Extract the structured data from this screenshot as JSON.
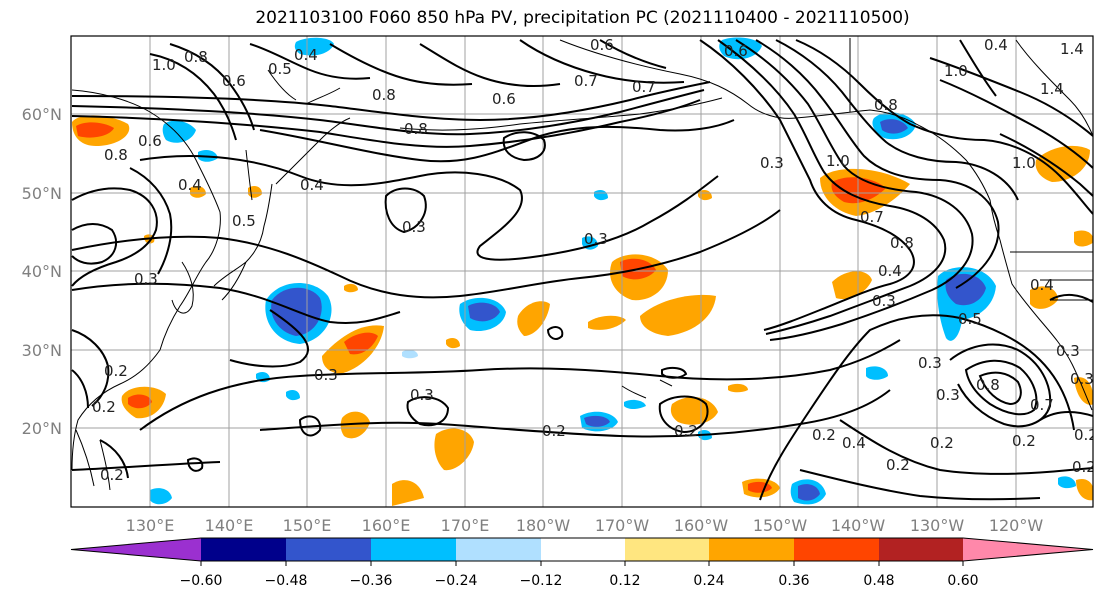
{
  "title": "2021103100 F060 850 hPa PV, precipitation PC (2021110400 - 2021110500)",
  "lat_labels": [
    "60°N",
    "50°N",
    "40°N",
    "30°N",
    "20°N"
  ],
  "lon_labels": [
    "130°E",
    "140°E",
    "150°E",
    "160°E",
    "170°E",
    "180°W",
    "170°W",
    "160°W",
    "150°W",
    "140°W",
    "130°W",
    "120°W"
  ],
  "contour_labels": [
    "0.8",
    "0.5",
    "0.4",
    "0.6",
    "0.6",
    "0.7",
    "0.7",
    "0.8",
    "0.8",
    "0.6",
    "1.0",
    "0.8",
    "0.6",
    "0.4",
    "0.4",
    "0.5",
    "0.3",
    "0.3",
    "0.3",
    "0.3",
    "0.3",
    "0.2",
    "0.2",
    "0.2",
    "0.2",
    "0.2",
    "0.3",
    "1.0",
    "0.7",
    "0.8",
    "0.4",
    "0.3",
    "0.3",
    "0.5",
    "0.3",
    "0.8",
    "0.2",
    "0.2",
    "0.4",
    "0.2",
    "0.2",
    "0.7",
    "1.4",
    "1.0",
    "1.4",
    "0.4",
    "0.4",
    "1.0",
    "0.3",
    "0.3",
    "0.2",
    "0.2",
    "0.6",
    "0.8"
  ],
  "colorbar": {
    "ticks": [
      "−0.60",
      "−0.48",
      "−0.36",
      "−0.24",
      "−0.12",
      "0.12",
      "0.24",
      "0.36",
      "0.48",
      "0.60"
    ],
    "colors": [
      "#9b30d0",
      "#00008b",
      "#3355cc",
      "#00bfff",
      "#b0e0ff",
      "#ffffff",
      "#ffe680",
      "#ffa500",
      "#ff4500",
      "#b22222",
      "#ff88aa"
    ]
  }
}
